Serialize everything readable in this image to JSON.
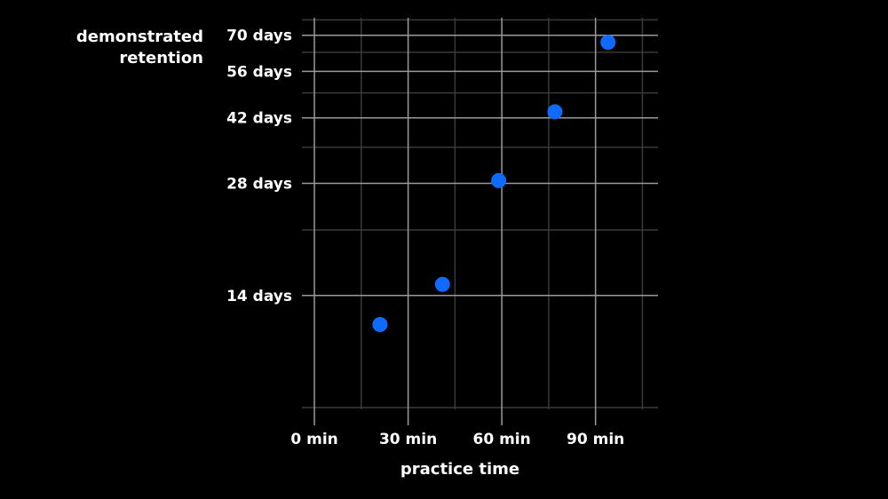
{
  "chart_data": {
    "type": "scatter",
    "title": "",
    "xlabel": "practice time",
    "ylabel": "demonstrated\nretention",
    "xlim": [
      -4,
      110
    ],
    "ylim": [
      7,
      78
    ],
    "yscale": "log",
    "grid": true,
    "x_ticks": [
      0,
      30,
      60,
      90
    ],
    "x_tick_labels": [
      "0 min",
      "30 min",
      "60 min",
      "90 min"
    ],
    "x_minor_ticks": [
      15,
      45,
      75,
      105
    ],
    "y_ticks": [
      14,
      28,
      42,
      56,
      70
    ],
    "y_tick_labels": [
      "14 days",
      "28 days",
      "42 days",
      "56 days",
      "70 days"
    ],
    "y_minor_ticks": [
      7,
      21,
      35,
      49,
      63,
      77
    ],
    "points": [
      {
        "x": 21,
        "y": 11.7
      },
      {
        "x": 41,
        "y": 15
      },
      {
        "x": 59,
        "y": 28.5
      },
      {
        "x": 77,
        "y": 43.6
      },
      {
        "x": 94,
        "y": 67
      }
    ],
    "colors": {
      "point": "#0f6bff",
      "background": "#000000",
      "grid_major": "#9a9a9a",
      "grid_minor": "#3a3a3a"
    }
  }
}
